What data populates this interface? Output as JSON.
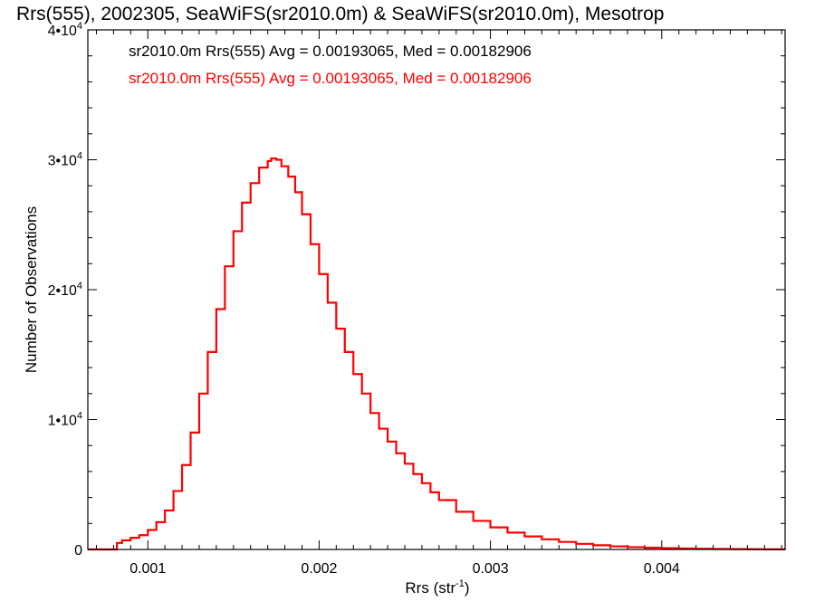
{
  "chart_data": {
    "type": "line",
    "title": "Rrs(555), 2002305, SeaWiFS(sr2010.0m) & SeaWiFS(sr2010.0m), Mesotrop",
    "xlabel": "Rrs (str",
    "xlabel_sup": "-1",
    "xlabel_tail": ")",
    "ylabel": "Number of Observations",
    "xlim": [
      0.00065,
      0.00472
    ],
    "ylim": [
      0,
      40000
    ],
    "x_ticks": [
      {
        "value": 0.001,
        "label": "0.001"
      },
      {
        "value": 0.002,
        "label": "0.002"
      },
      {
        "value": 0.003,
        "label": "0.003"
      },
      {
        "value": 0.004,
        "label": "0.004"
      }
    ],
    "y_ticks": [
      {
        "value": 0,
        "mant": "0",
        "exp": ""
      },
      {
        "value": 10000,
        "mant": "1•10",
        "exp": "4"
      },
      {
        "value": 20000,
        "mant": "2•10",
        "exp": "4"
      },
      {
        "value": 30000,
        "mant": "3•10",
        "exp": "4"
      },
      {
        "value": 40000,
        "mant": "4•10",
        "exp": "4"
      }
    ],
    "grid": false,
    "plot_style": "step histogram",
    "annotations": [
      {
        "text": "sr2010.0m Rrs(555) Avg = 0.00193065, Med = 0.00182906",
        "color": "#000000"
      },
      {
        "text": "sr2010.0m Rrs(555) Avg = 0.00193065, Med = 0.00182906",
        "color": "#ff0000"
      }
    ],
    "series": [
      {
        "color": "#ff0000",
        "points": [
          [
            0.00065,
            0
          ],
          [
            0.0008,
            0
          ],
          [
            0.00082,
            500
          ],
          [
            0.00085,
            700
          ],
          [
            0.0009,
            900
          ],
          [
            0.00095,
            1100
          ],
          [
            0.001,
            1500
          ],
          [
            0.00105,
            2100
          ],
          [
            0.0011,
            3000
          ],
          [
            0.00115,
            4500
          ],
          [
            0.0012,
            6500
          ],
          [
            0.00125,
            9000
          ],
          [
            0.0013,
            12000
          ],
          [
            0.00135,
            15200
          ],
          [
            0.0014,
            18500
          ],
          [
            0.00145,
            21800
          ],
          [
            0.0015,
            24500
          ],
          [
            0.00155,
            26700
          ],
          [
            0.0016,
            28200
          ],
          [
            0.00165,
            29400
          ],
          [
            0.0017,
            29900
          ],
          [
            0.00172,
            30100
          ],
          [
            0.00175,
            30000
          ],
          [
            0.00178,
            29500
          ],
          [
            0.00182,
            28700
          ],
          [
            0.00186,
            27500
          ],
          [
            0.0019,
            25800
          ],
          [
            0.00195,
            23500
          ],
          [
            0.002,
            21200
          ],
          [
            0.00205,
            19000
          ],
          [
            0.0021,
            17000
          ],
          [
            0.00215,
            15200
          ],
          [
            0.0022,
            13500
          ],
          [
            0.00225,
            12000
          ],
          [
            0.0023,
            10500
          ],
          [
            0.00235,
            9300
          ],
          [
            0.0024,
            8300
          ],
          [
            0.00245,
            7400
          ],
          [
            0.0025,
            6600
          ],
          [
            0.00255,
            5800
          ],
          [
            0.0026,
            5100
          ],
          [
            0.00265,
            4400
          ],
          [
            0.0027,
            3800
          ],
          [
            0.0028,
            2900
          ],
          [
            0.0029,
            2200
          ],
          [
            0.003,
            1700
          ],
          [
            0.0031,
            1300
          ],
          [
            0.0032,
            1000
          ],
          [
            0.0033,
            780
          ],
          [
            0.0034,
            580
          ],
          [
            0.0035,
            430
          ],
          [
            0.0036,
            320
          ],
          [
            0.0037,
            240
          ],
          [
            0.0038,
            180
          ],
          [
            0.0039,
            130
          ],
          [
            0.004,
            95
          ],
          [
            0.0041,
            70
          ],
          [
            0.0042,
            50
          ],
          [
            0.0043,
            35
          ],
          [
            0.0044,
            25
          ],
          [
            0.0045,
            15
          ],
          [
            0.0046,
            8
          ],
          [
            0.00472,
            3
          ]
        ]
      }
    ]
  }
}
